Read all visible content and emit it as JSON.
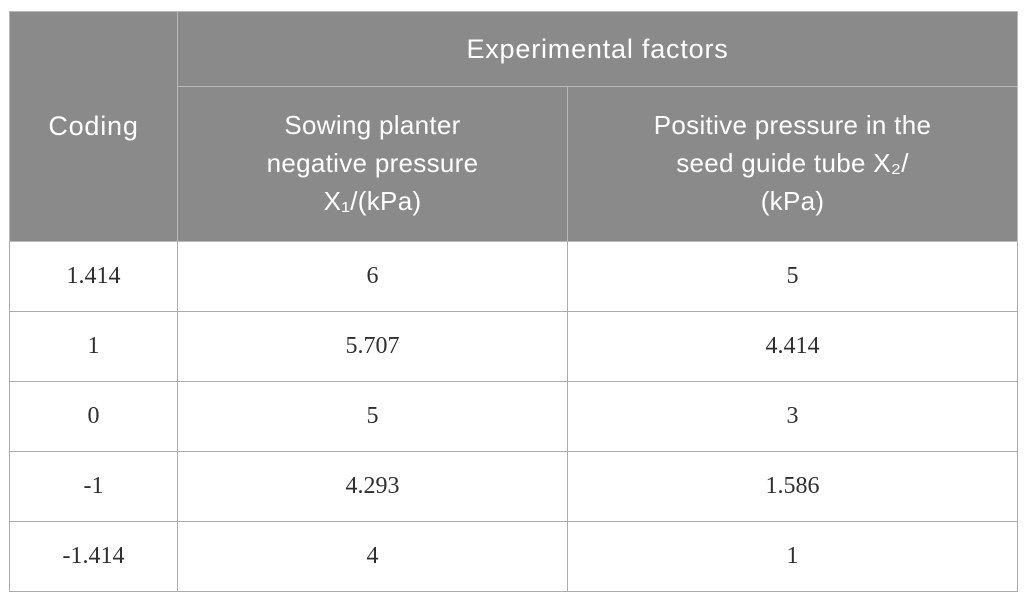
{
  "table": {
    "title_semantic": "experimental-factor-coding-table",
    "header": {
      "coding": "Coding",
      "group": "Experimental factors",
      "factor1": "Sowing planter\nnegative pressure\nX₁/(kPa)",
      "factor2": "Positive pressure in the\nseed guide tube X₂/\n(kPa)"
    },
    "rows": [
      {
        "coding": "1.414",
        "x1": "6",
        "x2": "5"
      },
      {
        "coding": "1",
        "x1": "5.707",
        "x2": "4.414"
      },
      {
        "coding": "0",
        "x1": "5",
        "x2": "3"
      },
      {
        "coding": "-1",
        "x1": "4.293",
        "x2": "1.586"
      },
      {
        "coding": "-1.414",
        "x1": "4",
        "x2": "1"
      }
    ],
    "colors": {
      "header_background": "#8a8a8a",
      "header_text": "#ffffff",
      "body_text": "#2f2f2f",
      "grid_line": "#ababab",
      "header_grid_line": "#b9b9b9",
      "page_background": "#ffffff"
    }
  }
}
